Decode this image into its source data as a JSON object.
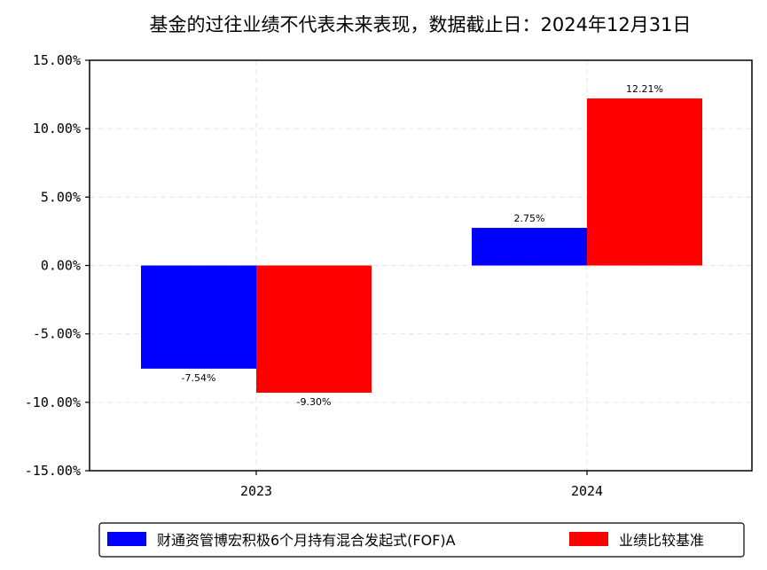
{
  "chart_data": {
    "type": "bar",
    "title": "基金的过往业绩不代表未来表现，数据截止日：2024年12月31日",
    "xlabel": "",
    "ylabel": "",
    "categories": [
      "2023",
      "2024"
    ],
    "series": [
      {
        "name": "财通资管博宏积极6个月持有混合发起式(FOF)A",
        "values": [
          -7.54,
          2.75
        ],
        "labels": [
          "-7.54%",
          "2.75%"
        ],
        "color": "#0000ff"
      },
      {
        "name": "业绩比较基准",
        "values": [
          -9.3,
          12.21
        ],
        "labels": [
          "-9.30%",
          "12.21%"
        ],
        "color": "#ff0000"
      }
    ],
    "ylim": [
      -15,
      15
    ],
    "yticks": [
      15,
      10,
      5,
      0,
      -5,
      -10,
      -15
    ],
    "ytick_labels": [
      "15.00%",
      "10.00%",
      "5.00%",
      "0.00%",
      "-5.00%",
      "-10.00%",
      "-15.00%"
    ],
    "grid": true,
    "legend_position": "bottom-center"
  }
}
